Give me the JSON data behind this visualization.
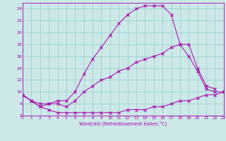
{
  "xlabel": "Windchill (Refroidissement éolien,°C)",
  "ylabel": "",
  "xlim": [
    0,
    23
  ],
  "ylim": [
    6,
    25
  ],
  "yticks": [
    6,
    8,
    10,
    12,
    14,
    16,
    18,
    20,
    22,
    24
  ],
  "xticks": [
    0,
    1,
    2,
    3,
    4,
    5,
    6,
    7,
    8,
    9,
    10,
    11,
    12,
    13,
    14,
    15,
    16,
    17,
    18,
    19,
    20,
    21,
    22,
    23
  ],
  "bg_color": "#cce8e8",
  "line_color": "#aa00aa",
  "grid_color": "#99cccc",
  "line1_x": [
    0,
    1,
    2,
    3,
    4,
    5,
    6,
    7,
    8,
    9,
    10,
    11,
    12,
    13,
    14,
    15,
    16,
    17,
    18,
    19,
    20,
    21,
    22,
    23
  ],
  "line1_y": [
    9.5,
    8.5,
    7.5,
    7.0,
    6.5,
    6.5,
    6.5,
    6.5,
    6.5,
    6.5,
    6.5,
    6.5,
    7.0,
    7.0,
    7.0,
    7.5,
    7.5,
    8.0,
    8.5,
    8.5,
    9.0,
    9.5,
    9.5,
    10.0
  ],
  "line2_x": [
    0,
    1,
    2,
    3,
    4,
    5,
    6,
    7,
    8,
    9,
    10,
    11,
    12,
    13,
    14,
    15,
    16,
    17,
    18,
    19,
    20,
    21,
    22,
    23
  ],
  "line2_y": [
    9.5,
    8.5,
    8.0,
    8.0,
    8.0,
    7.5,
    8.5,
    10.0,
    11.0,
    12.0,
    12.5,
    13.5,
    14.0,
    15.0,
    15.5,
    16.0,
    16.5,
    17.5,
    18.0,
    16.0,
    13.5,
    10.5,
    10.0,
    10.0
  ],
  "line3_x": [
    0,
    1,
    2,
    3,
    4,
    5,
    6,
    7,
    8,
    9,
    10,
    11,
    12,
    13,
    14,
    15,
    16,
    17,
    18,
    19,
    20,
    21,
    22
  ],
  "line3_y": [
    9.5,
    8.5,
    7.5,
    8.0,
    8.5,
    8.5,
    10.0,
    13.0,
    15.5,
    17.5,
    19.5,
    21.5,
    23.0,
    24.0,
    24.5,
    24.5,
    24.5,
    23.0,
    18.0,
    18.0,
    14.0,
    11.0,
    10.5
  ]
}
